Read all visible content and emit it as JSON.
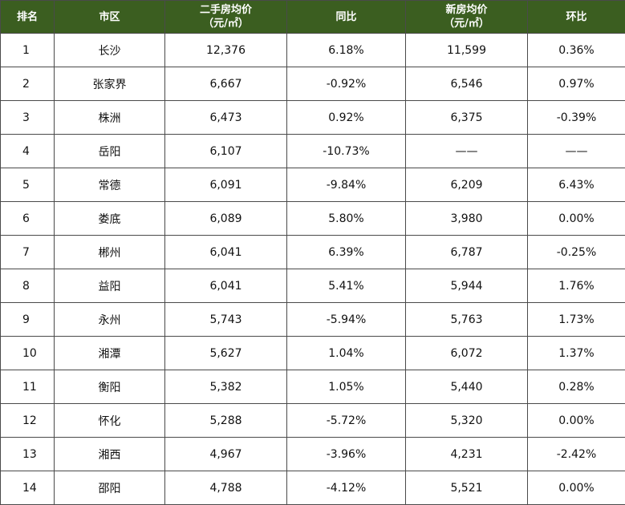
{
  "table": {
    "headers": {
      "rank": "排名",
      "city": "市区",
      "used_price_line1": "二手房均价",
      "used_price_line2": "（元/㎡）",
      "used_yoy": "同比",
      "new_price_line1": "新房均价",
      "new_price_line2": "（元/㎡）",
      "new_mom": "环比"
    },
    "rows": [
      {
        "rank": "1",
        "city": "长沙",
        "used_price": "12,376",
        "used_yoy": "6.18%",
        "new_price": "11,599",
        "new_mom": "0.36%"
      },
      {
        "rank": "2",
        "city": "张家界",
        "used_price": "6,667",
        "used_yoy": "-0.92%",
        "new_price": "6,546",
        "new_mom": "0.97%"
      },
      {
        "rank": "3",
        "city": "株洲",
        "used_price": "6,473",
        "used_yoy": "0.92%",
        "new_price": "6,375",
        "new_mom": "-0.39%"
      },
      {
        "rank": "4",
        "city": "岳阳",
        "used_price": "6,107",
        "used_yoy": "-10.73%",
        "new_price": "——",
        "new_mom": "——"
      },
      {
        "rank": "5",
        "city": "常德",
        "used_price": "6,091",
        "used_yoy": "-9.84%",
        "new_price": "6,209",
        "new_mom": "6.43%"
      },
      {
        "rank": "6",
        "city": "娄底",
        "used_price": "6,089",
        "used_yoy": "5.80%",
        "new_price": "3,980",
        "new_mom": "0.00%"
      },
      {
        "rank": "7",
        "city": "郴州",
        "used_price": "6,041",
        "used_yoy": "6.39%",
        "new_price": "6,787",
        "new_mom": "-0.25%"
      },
      {
        "rank": "8",
        "city": "益阳",
        "used_price": "6,041",
        "used_yoy": "5.41%",
        "new_price": "5,944",
        "new_mom": "1.76%"
      },
      {
        "rank": "9",
        "city": "永州",
        "used_price": "5,743",
        "used_yoy": "-5.94%",
        "new_price": "5,763",
        "new_mom": "1.73%"
      },
      {
        "rank": "10",
        "city": "湘潭",
        "used_price": "5,627",
        "used_yoy": "1.04%",
        "new_price": "6,072",
        "new_mom": "1.37%"
      },
      {
        "rank": "11",
        "city": "衡阳",
        "used_price": "5,382",
        "used_yoy": "1.05%",
        "new_price": "5,440",
        "new_mom": "0.28%"
      },
      {
        "rank": "12",
        "city": "怀化",
        "used_price": "5,288",
        "used_yoy": "-5.72%",
        "new_price": "5,320",
        "new_mom": "0.00%"
      },
      {
        "rank": "13",
        "city": "湘西",
        "used_price": "4,967",
        "used_yoy": "-3.96%",
        "new_price": "4,231",
        "new_mom": "-2.42%"
      },
      {
        "rank": "14",
        "city": "邵阳",
        "used_price": "4,788",
        "used_yoy": "-4.12%",
        "new_price": "5,521",
        "new_mom": "0.00%"
      }
    ]
  },
  "colors": {
    "header_background": "#3b5e20",
    "header_text": "#ffffff",
    "border": "#4a4a4a"
  }
}
